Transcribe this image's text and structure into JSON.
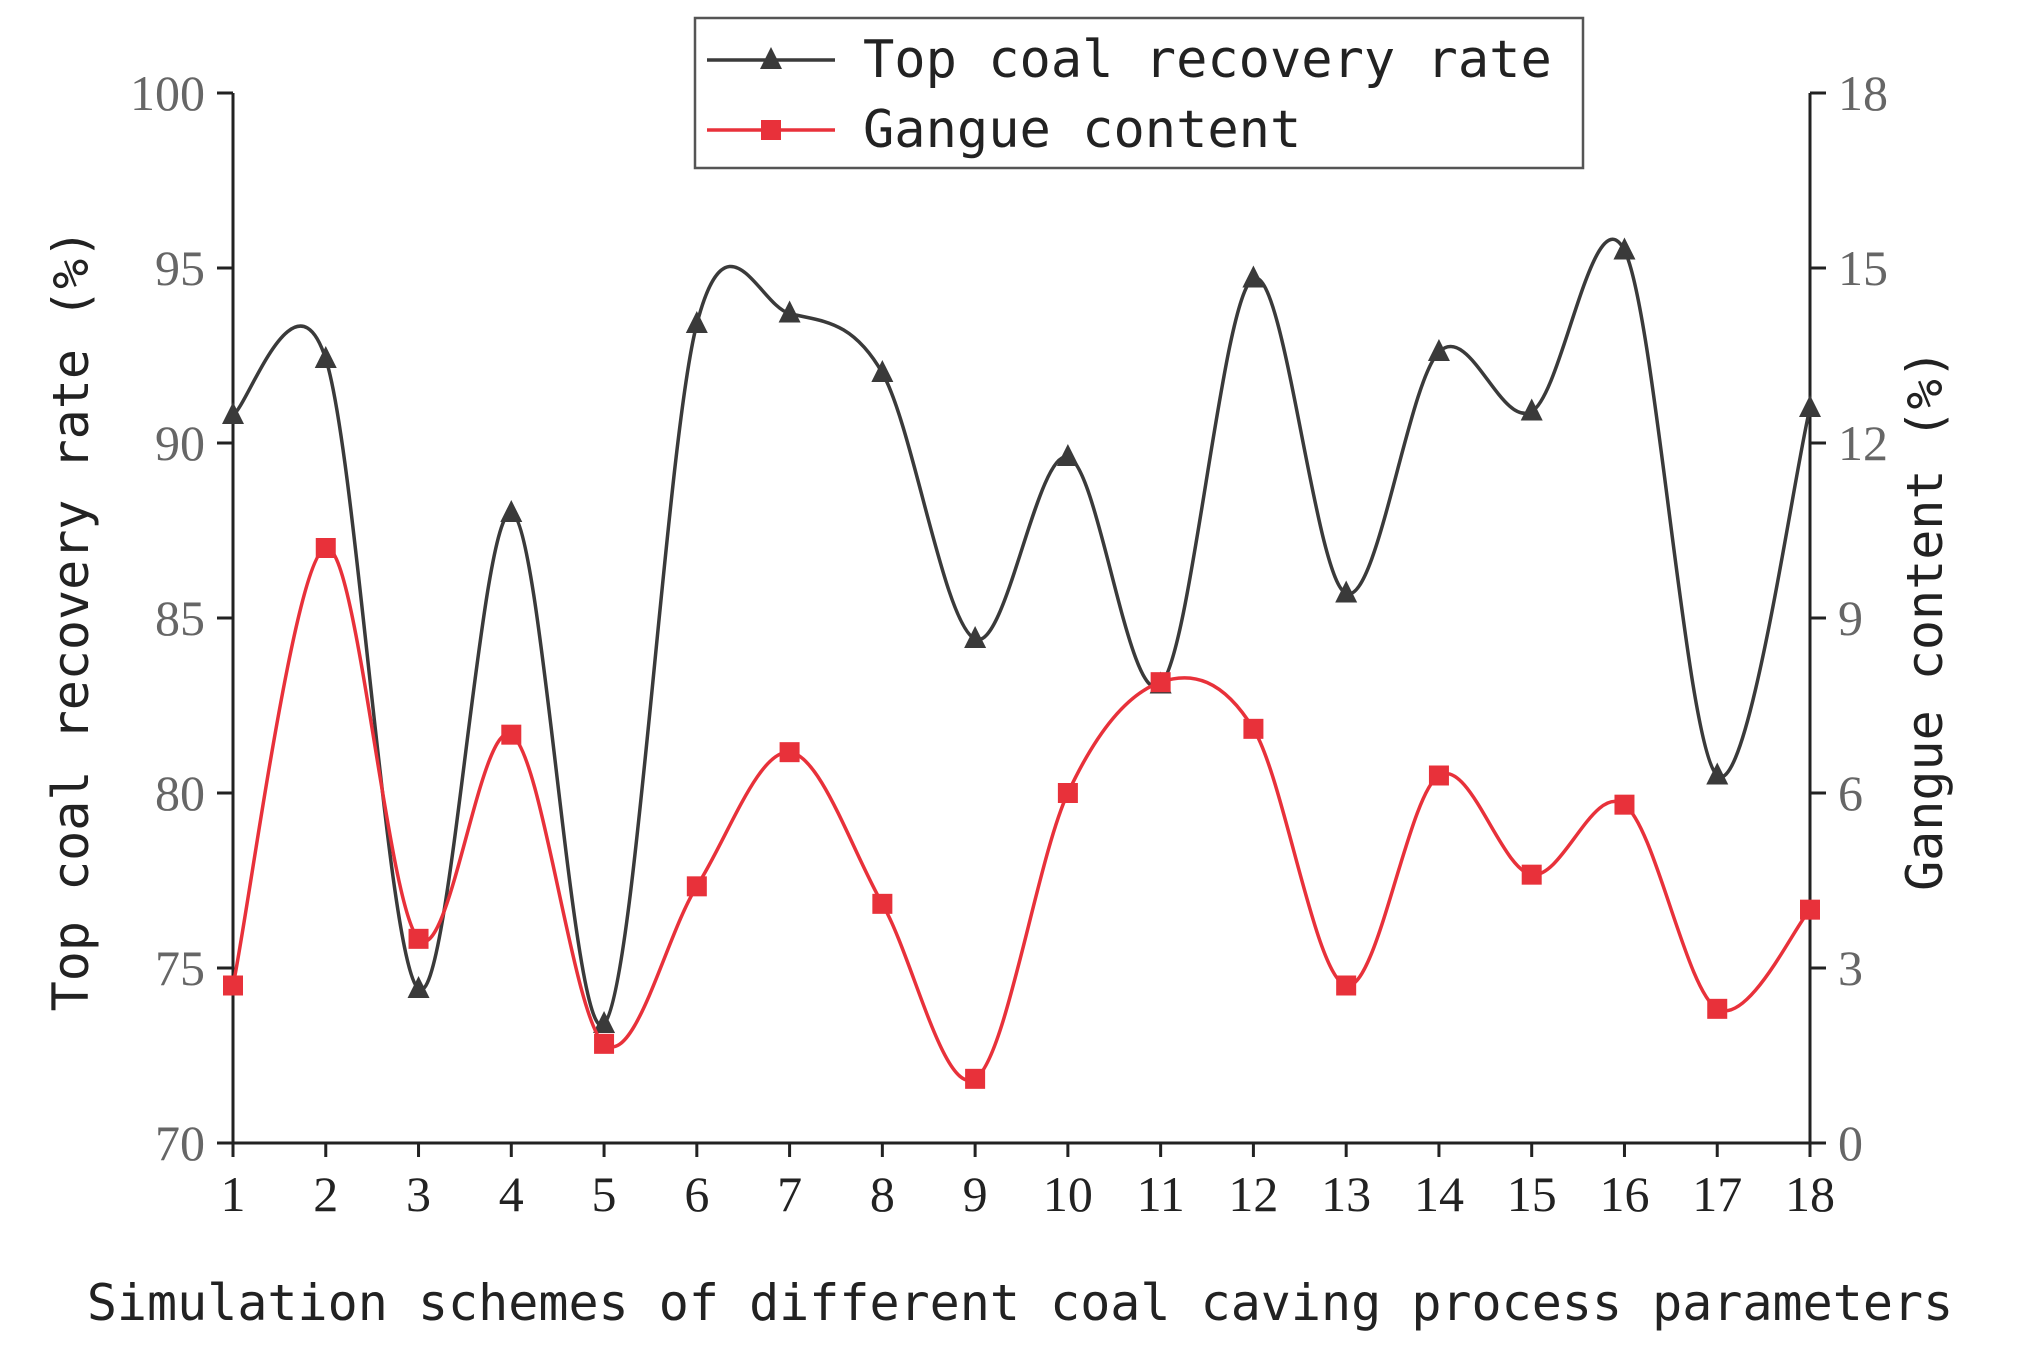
{
  "chart_data": {
    "type": "line",
    "xlabel": "Simulation schemes of different coal caving process parameters",
    "ylabel_left": "Top coal recovery rate (%)",
    "ylabel_right": "Gangue content (%)",
    "x": [
      "1",
      "2",
      "3",
      "4",
      "5",
      "6",
      "7",
      "8",
      "9",
      "10",
      "11",
      "12",
      "13",
      "14",
      "15",
      "16",
      "17",
      "18"
    ],
    "ylim_left": [
      70,
      100
    ],
    "yticks_left": [
      "70",
      "75",
      "80",
      "85",
      "90",
      "95",
      "100"
    ],
    "ylim_right": [
      0,
      18
    ],
    "yticks_right": [
      "0",
      "3",
      "6",
      "9",
      "12",
      "15",
      "18"
    ],
    "grid": false,
    "legend_position": "top-center",
    "series": [
      {
        "name": "Top coal recovery rate",
        "axis": "left",
        "marker": "triangle",
        "color": "#3a3a3a",
        "values": [
          90.8,
          92.4,
          74.4,
          88.0,
          73.4,
          93.4,
          93.7,
          92.0,
          84.4,
          89.6,
          83.1,
          94.7,
          85.7,
          92.6,
          90.9,
          95.5,
          80.5,
          91.0
        ]
      },
      {
        "name": "Gangue content",
        "axis": "right",
        "marker": "square",
        "color": "#e8313a",
        "values": [
          2.7,
          10.2,
          3.5,
          7.0,
          1.7,
          4.4,
          6.7,
          4.1,
          1.1,
          6.0,
          7.9,
          7.1,
          2.7,
          6.3,
          4.6,
          5.8,
          2.3,
          4.0
        ]
      }
    ]
  }
}
